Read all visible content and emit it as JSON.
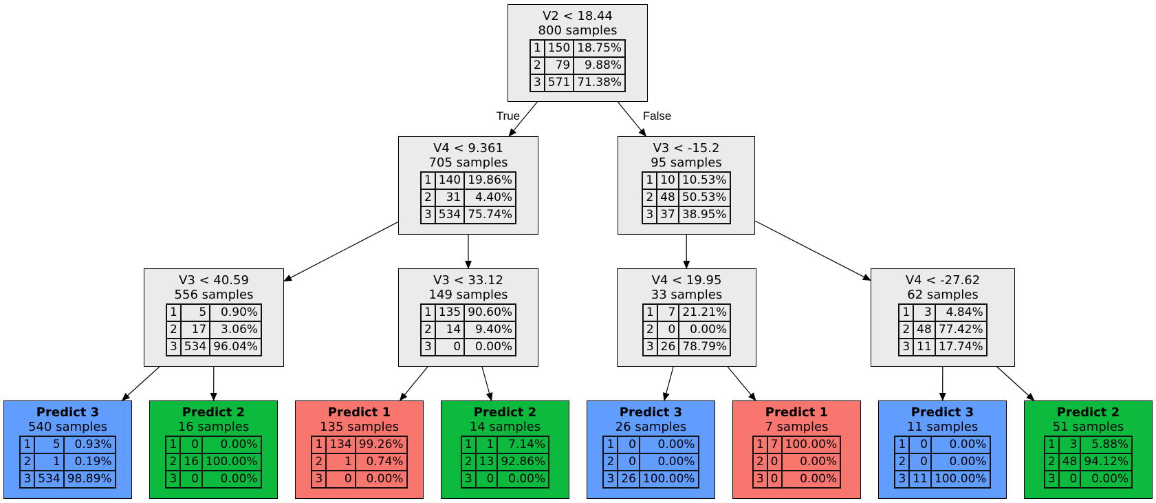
{
  "nodes": [
    {
      "id": "n0",
      "title": "V2 < 18.44",
      "samples": "800 samples",
      "class": "split",
      "rows": [
        [
          "1",
          "150",
          "18.75%"
        ],
        [
          "2",
          "79",
          "9.88%"
        ],
        [
          "3",
          "571",
          "71.38%"
        ]
      ]
    },
    {
      "id": "n1",
      "title": "V4 < 9.361",
      "samples": "705 samples",
      "class": "split",
      "rows": [
        [
          "1",
          "140",
          "19.86%"
        ],
        [
          "2",
          "31",
          "4.40%"
        ],
        [
          "3",
          "534",
          "75.74%"
        ]
      ]
    },
    {
      "id": "n2",
      "title": "V3 < -15.2",
      "samples": "95 samples",
      "class": "split",
      "rows": [
        [
          "1",
          "10",
          "10.53%"
        ],
        [
          "2",
          "48",
          "50.53%"
        ],
        [
          "3",
          "37",
          "38.95%"
        ]
      ]
    },
    {
      "id": "n3",
      "title": "V3 < 40.59",
      "samples": "556 samples",
      "class": "split",
      "rows": [
        [
          "1",
          "5",
          "0.90%"
        ],
        [
          "2",
          "17",
          "3.06%"
        ],
        [
          "3",
          "534",
          "96.04%"
        ]
      ]
    },
    {
      "id": "n4",
      "title": "V3 < 33.12",
      "samples": "149 samples",
      "class": "split",
      "rows": [
        [
          "1",
          "135",
          "90.60%"
        ],
        [
          "2",
          "14",
          "9.40%"
        ],
        [
          "3",
          "0",
          "0.00%"
        ]
      ]
    },
    {
      "id": "n5",
      "title": "V4 < 19.95",
      "samples": "33 samples",
      "class": "split",
      "rows": [
        [
          "1",
          "7",
          "21.21%"
        ],
        [
          "2",
          "0",
          "0.00%"
        ],
        [
          "3",
          "26",
          "78.79%"
        ]
      ]
    },
    {
      "id": "n6",
      "title": "V4 < -27.62",
      "samples": "62 samples",
      "class": "split",
      "rows": [
        [
          "1",
          "3",
          "4.84%"
        ],
        [
          "2",
          "48",
          "77.42%"
        ],
        [
          "3",
          "11",
          "17.74%"
        ]
      ]
    },
    {
      "id": "l0",
      "title": "Predict 3",
      "samples": "540 samples",
      "class": "c3",
      "rows": [
        [
          "1",
          "5",
          "0.93%"
        ],
        [
          "2",
          "1",
          "0.19%"
        ],
        [
          "3",
          "534",
          "98.89%"
        ]
      ]
    },
    {
      "id": "l1",
      "title": "Predict 2",
      "samples": "16 samples",
      "class": "c2",
      "rows": [
        [
          "1",
          "0",
          "0.00%"
        ],
        [
          "2",
          "16",
          "100.00%"
        ],
        [
          "3",
          "0",
          "0.00%"
        ]
      ]
    },
    {
      "id": "l2",
      "title": "Predict 1",
      "samples": "135 samples",
      "class": "c1",
      "rows": [
        [
          "1",
          "134",
          "99.26%"
        ],
        [
          "2",
          "1",
          "0.74%"
        ],
        [
          "3",
          "0",
          "0.00%"
        ]
      ]
    },
    {
      "id": "l3",
      "title": "Predict 2",
      "samples": "14 samples",
      "class": "c2",
      "rows": [
        [
          "1",
          "1",
          "7.14%"
        ],
        [
          "2",
          "13",
          "92.86%"
        ],
        [
          "3",
          "0",
          "0.00%"
        ]
      ]
    },
    {
      "id": "l4",
      "title": "Predict 3",
      "samples": "26 samples",
      "class": "c3",
      "rows": [
        [
          "1",
          "0",
          "0.00%"
        ],
        [
          "2",
          "0",
          "0.00%"
        ],
        [
          "3",
          "26",
          "100.00%"
        ]
      ]
    },
    {
      "id": "l5",
      "title": "Predict 1",
      "samples": "7 samples",
      "class": "c1",
      "rows": [
        [
          "1",
          "7",
          "100.00%"
        ],
        [
          "2",
          "0",
          "0.00%"
        ],
        [
          "3",
          "0",
          "0.00%"
        ]
      ]
    },
    {
      "id": "l6",
      "title": "Predict 3",
      "samples": "11 samples",
      "class": "c3",
      "rows": [
        [
          "1",
          "0",
          "0.00%"
        ],
        [
          "2",
          "0",
          "0.00%"
        ],
        [
          "3",
          "11",
          "100.00%"
        ]
      ]
    },
    {
      "id": "l7",
      "title": "Predict 2",
      "samples": "51 samples",
      "class": "c2",
      "rows": [
        [
          "1",
          "3",
          "5.88%"
        ],
        [
          "2",
          "48",
          "94.12%"
        ],
        [
          "3",
          "0",
          "0.00%"
        ]
      ]
    }
  ],
  "edges": [
    {
      "from": "n0",
      "to": "n1",
      "label": "True"
    },
    {
      "from": "n0",
      "to": "n2",
      "label": "False"
    },
    {
      "from": "n1",
      "to": "n3",
      "label": ""
    },
    {
      "from": "n1",
      "to": "n4",
      "label": ""
    },
    {
      "from": "n2",
      "to": "n5",
      "label": ""
    },
    {
      "from": "n2",
      "to": "n6",
      "label": ""
    },
    {
      "from": "n3",
      "to": "l0",
      "label": ""
    },
    {
      "from": "n3",
      "to": "l1",
      "label": ""
    },
    {
      "from": "n4",
      "to": "l2",
      "label": ""
    },
    {
      "from": "n4",
      "to": "l3",
      "label": ""
    },
    {
      "from": "n5",
      "to": "l4",
      "label": ""
    },
    {
      "from": "n5",
      "to": "l5",
      "label": ""
    },
    {
      "from": "n6",
      "to": "l6",
      "label": ""
    },
    {
      "from": "n6",
      "to": "l7",
      "label": ""
    }
  ]
}
